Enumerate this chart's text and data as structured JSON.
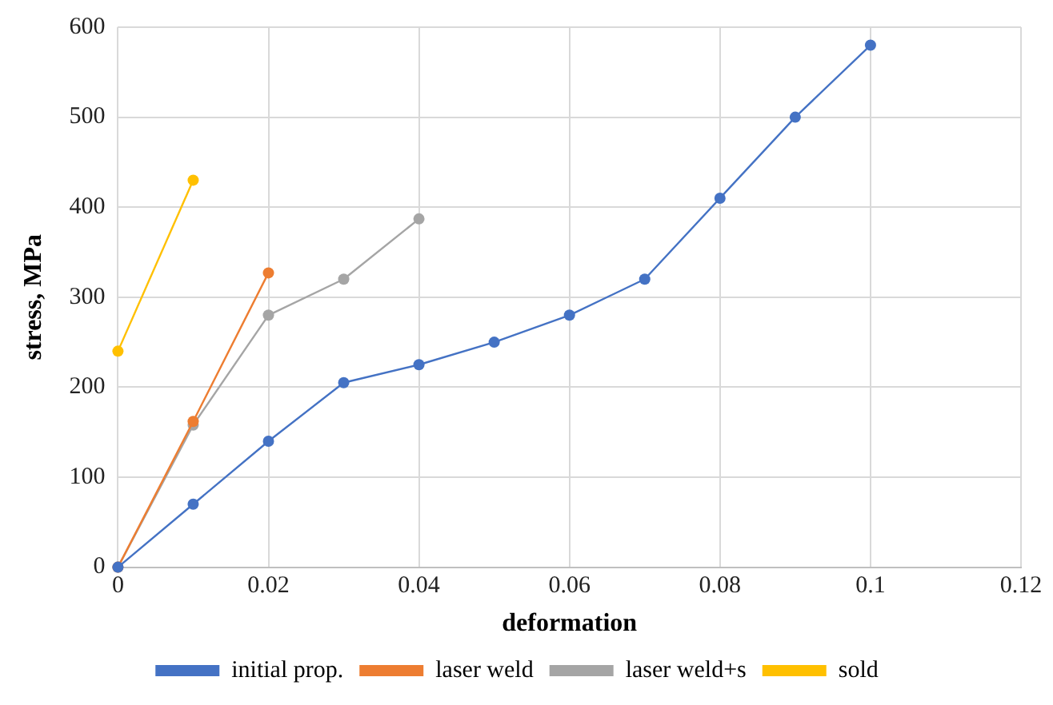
{
  "chart_data": {
    "type": "line",
    "xlabel": "deformation",
    "ylabel": "stress, MPa",
    "series": [
      {
        "name": "initial prop.",
        "color": "#4472c4",
        "x": [
          0,
          0.01,
          0.02,
          0.03,
          0.04,
          0.05,
          0.06,
          0.07,
          0.08,
          0.09,
          0.1
        ],
        "values": [
          0,
          70,
          140,
          205,
          225,
          250,
          280,
          320,
          410,
          500,
          580
        ]
      },
      {
        "name": "laser weld",
        "color": "#ed7d31",
        "x": [
          0,
          0.01,
          0.02
        ],
        "values": [
          0,
          162,
          327
        ]
      },
      {
        "name": "laser weld+s",
        "color": "#a5a5a5",
        "x": [
          0,
          0.01,
          0.02,
          0.03,
          0.04
        ],
        "values": [
          0,
          158,
          280,
          320,
          387
        ]
      },
      {
        "name": "sold",
        "color": "#ffc000",
        "x": [
          0,
          0.01
        ],
        "values": [
          240,
          430
        ]
      }
    ],
    "xlim": [
      0,
      0.12
    ],
    "xticks": [
      0,
      0.02,
      0.04,
      0.06,
      0.08,
      0.1,
      0.12
    ],
    "ylim": [
      0,
      600
    ],
    "yticks": [
      0,
      100,
      200,
      300,
      400,
      500,
      600
    ],
    "grid": true,
    "legend": "bottom",
    "marker": "circle",
    "line_style": "solid"
  }
}
